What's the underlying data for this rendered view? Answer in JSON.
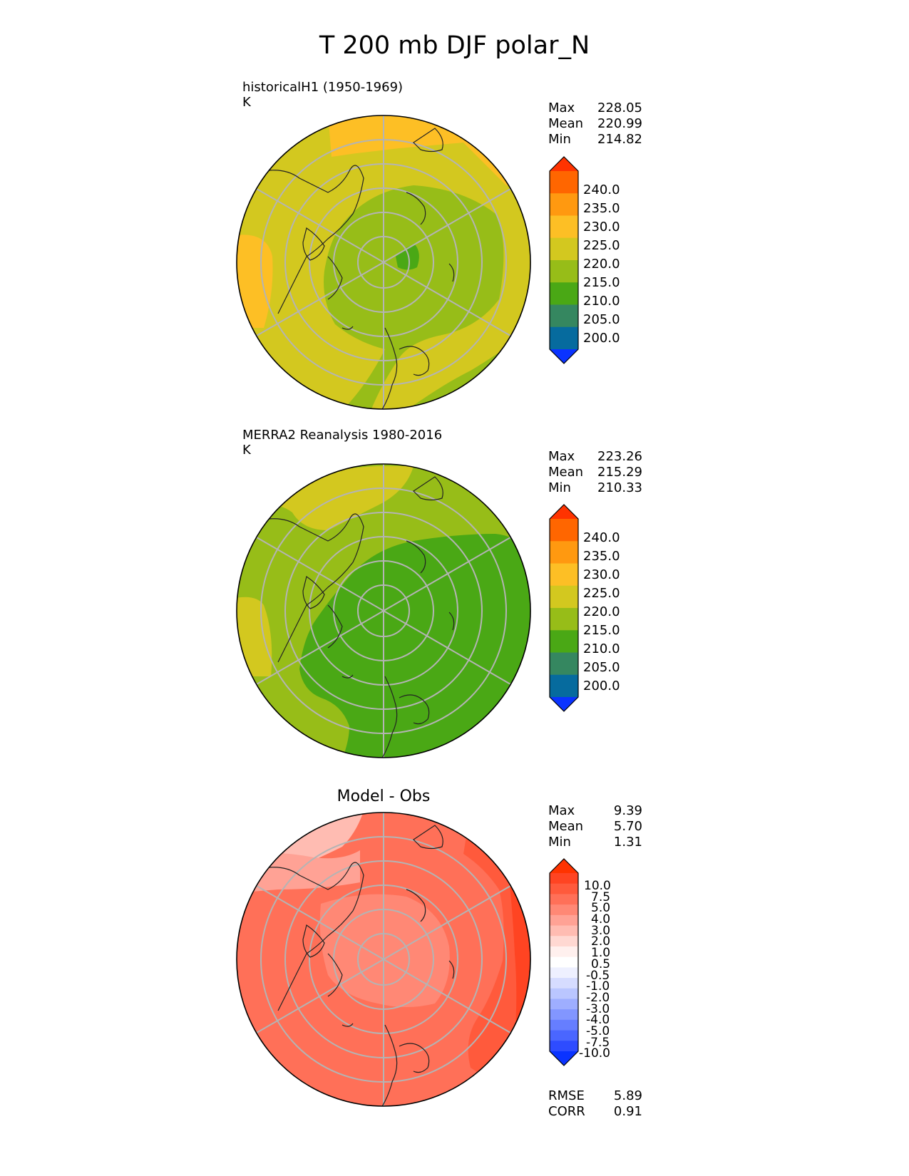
{
  "title": "T 200 mb DJF polar_N",
  "panels": [
    {
      "id": "test",
      "title_line1": "historicalH1 (1950-1969)",
      "title_line2": "K",
      "stats": [
        {
          "label": "Max",
          "value": "228.05"
        },
        {
          "label": "Mean",
          "value": "220.99"
        },
        {
          "label": "Min",
          "value": "214.82"
        }
      ],
      "colorbar": {
        "ticks": [
          "240.0",
          "235.0",
          "230.0",
          "225.0",
          "220.0",
          "215.0",
          "210.0",
          "205.0",
          "200.0"
        ],
        "colors": [
          "#ff3300",
          "#ff6600",
          "#ff9910",
          "#fdbf25",
          "#d3c81f",
          "#97bd18",
          "#4aa815",
          "#358760",
          "#066b9e",
          "#0a33ff"
        ]
      }
    },
    {
      "id": "reference",
      "title_line1": "MERRA2 Reanalysis 1980-2016",
      "title_line2": "K",
      "stats": [
        {
          "label": "Max",
          "value": "223.26"
        },
        {
          "label": "Mean",
          "value": "215.29"
        },
        {
          "label": "Min",
          "value": "210.33"
        }
      ],
      "colorbar": {
        "ticks": [
          "240.0",
          "235.0",
          "230.0",
          "225.0",
          "220.0",
          "215.0",
          "210.0",
          "205.0",
          "200.0"
        ],
        "colors": [
          "#ff3300",
          "#ff6600",
          "#ff9910",
          "#fdbf25",
          "#d3c81f",
          "#97bd18",
          "#4aa815",
          "#358760",
          "#066b9e",
          "#0a33ff"
        ]
      }
    },
    {
      "id": "diff",
      "title_line1": "Model - Obs",
      "stats": [
        {
          "label": "Max",
          "value": "9.39"
        },
        {
          "label": "Mean",
          "value": "5.70"
        },
        {
          "label": "Min",
          "value": "1.31"
        }
      ],
      "colorbar": {
        "ticks": [
          "10.0",
          "7.5",
          "5.0",
          "4.0",
          "3.0",
          "2.0",
          "1.0",
          "0.5",
          "-0.5",
          "-1.0",
          "-2.0",
          "-3.0",
          "-4.0",
          "-5.0",
          "-7.5",
          "-10.0"
        ],
        "colors": [
          "#ff3300",
          "#ff4422",
          "#ff5a3c",
          "#ff7058",
          "#ff8875",
          "#ffa295",
          "#ffbcb2",
          "#ffd8d2",
          "#fff0ee",
          "#ffffff",
          "#eef0ff",
          "#d6dcff",
          "#bac6ff",
          "#9eaeff",
          "#8296ff",
          "#667eff",
          "#4a66ff",
          "#2e4cff",
          "#0a33ff"
        ]
      },
      "rmse": {
        "label": "RMSE",
        "value": "5.89"
      },
      "corr": {
        "label": "CORR",
        "value": "0.91"
      }
    }
  ]
}
